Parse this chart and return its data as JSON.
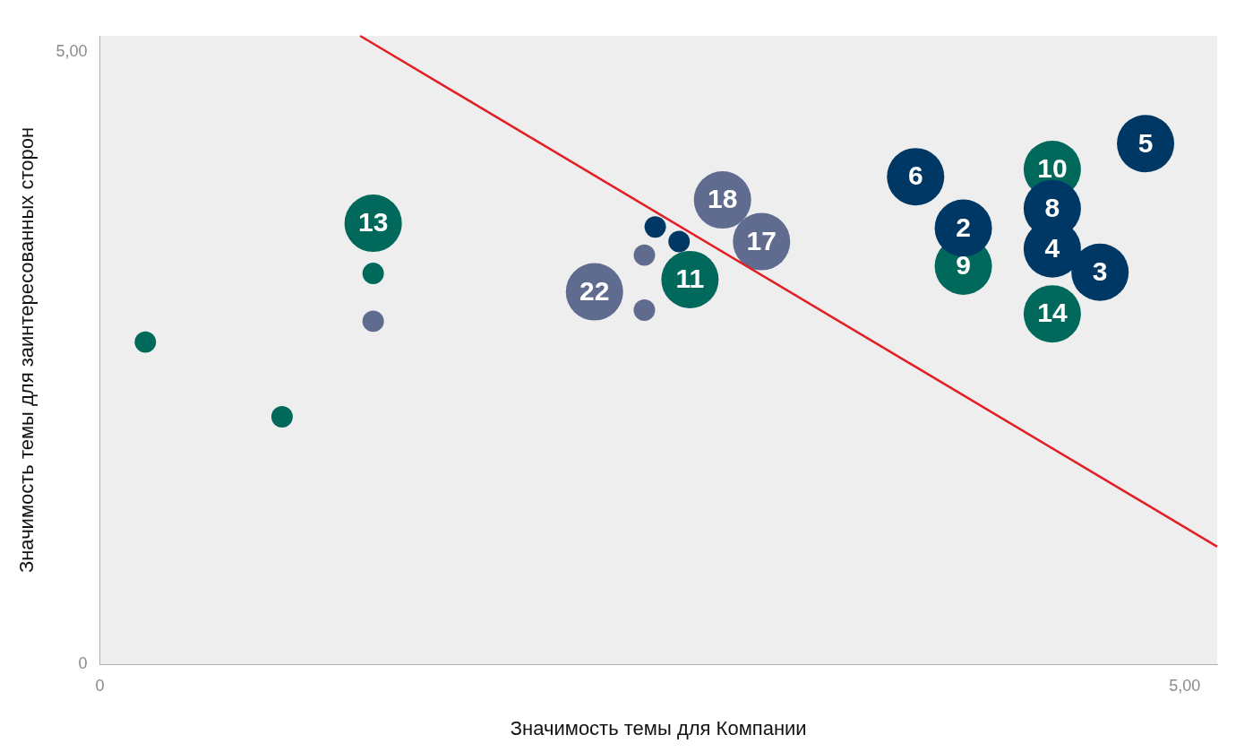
{
  "chart_data": {
    "type": "bubble",
    "xlabel": "Значимость темы для Компании",
    "ylabel": "Значимость темы для заинтересованных сторон",
    "xlim": [
      0,
      5.15
    ],
    "ylim": [
      0,
      5.13
    ],
    "xticks": [
      0,
      {
        "value": 5,
        "label": "5,00"
      }
    ],
    "yticks": [
      0,
      {
        "value": 5,
        "label": "5,00"
      }
    ],
    "series": [
      {
        "color": "#5f6b8f",
        "x": [
          2.87,
          3.05,
          2.28,
          2.51,
          2.51,
          1.26
        ],
        "values": [
          3.79,
          3.45,
          3.04,
          3.34,
          2.89,
          2.8
        ],
        "sizes": [
          1,
          1,
          1,
          0.14,
          0.14,
          0.14
        ]
      },
      {
        "color": "#003865",
        "x": [
          3.76,
          3.98,
          4.39,
          4.39,
          4.61,
          4.82,
          2.56,
          2.67
        ],
        "values": [
          3.98,
          3.56,
          3.72,
          3.39,
          3.2,
          4.25,
          3.57,
          3.45
        ],
        "sizes": [
          1,
          1,
          1,
          1,
          1,
          1,
          0.14,
          0.14
        ]
      },
      {
        "color": "#00695c",
        "x": [
          1.26,
          2.72,
          3.98,
          4.39,
          4.39,
          1.26,
          0.21,
          0.84
        ],
        "values": [
          3.6,
          3.14,
          3.25,
          4.04,
          2.86,
          3.19,
          2.63,
          2.02
        ],
        "sizes": [
          1,
          1,
          1,
          1,
          1,
          0.14,
          0.14,
          0.14
        ]
      },
      {
        "type": "line",
        "color": "#e31e24",
        "x": [
          1.2,
          5.15
        ],
        "values": [
          5.13,
          0.96
        ]
      }
    ],
    "annotations": [
      {
        "text": "18",
        "x": 2.87,
        "y": 3.79
      },
      {
        "text": "17",
        "x": 3.05,
        "y": 3.45
      },
      {
        "text": "22",
        "x": 2.28,
        "y": 3.04
      },
      {
        "text": "6",
        "x": 3.76,
        "y": 3.98
      },
      {
        "text": "2",
        "x": 3.98,
        "y": 3.56
      },
      {
        "text": "8",
        "x": 4.39,
        "y": 3.72
      },
      {
        "text": "4",
        "x": 4.39,
        "y": 3.39
      },
      {
        "text": "3",
        "x": 4.61,
        "y": 3.2
      },
      {
        "text": "5",
        "x": 4.82,
        "y": 4.25
      },
      {
        "text": "13",
        "x": 1.26,
        "y": 3.6
      },
      {
        "text": "11",
        "x": 2.72,
        "y": 3.14
      },
      {
        "text": "9",
        "x": 3.98,
        "y": 3.25
      },
      {
        "text": "10",
        "x": 4.39,
        "y": 4.04
      },
      {
        "text": "14",
        "x": 4.39,
        "y": 2.86
      }
    ]
  }
}
